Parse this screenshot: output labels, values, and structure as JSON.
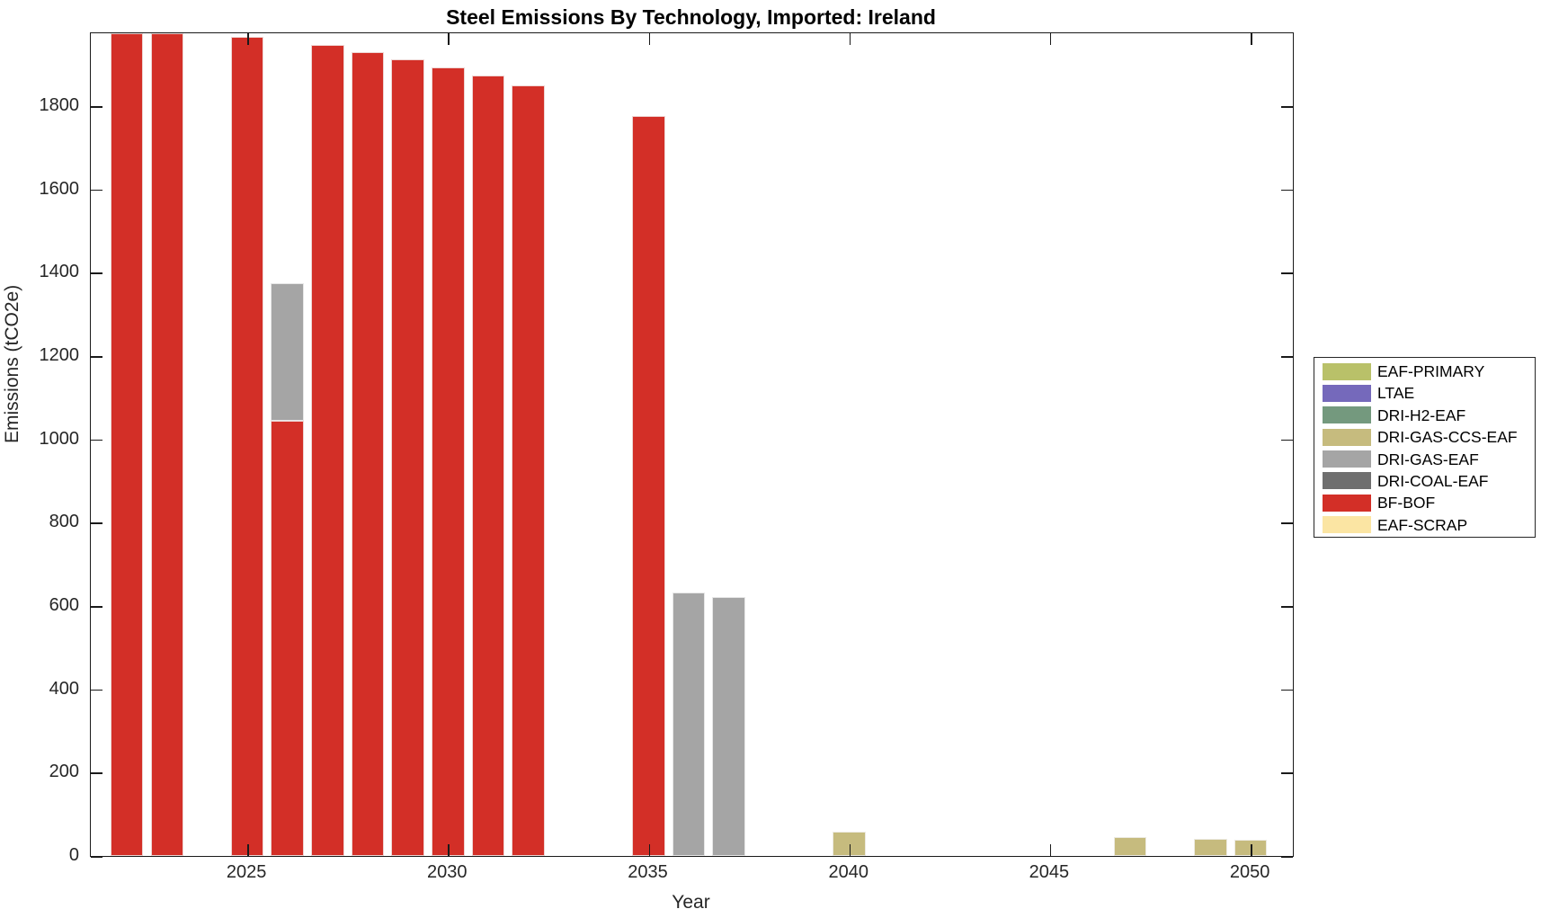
{
  "chart_data": {
    "type": "bar",
    "stacked": true,
    "title": "Steel Emissions By Technology, Imported: Ireland",
    "xlabel": "Year",
    "ylabel": "Emissions (tCO2e)",
    "xlim": [
      2021.1,
      2051.05
    ],
    "ylim": [
      0,
      1975
    ],
    "x_ticks": [
      2025,
      2030,
      2035,
      2040,
      2045,
      2050
    ],
    "y_ticks": [
      0,
      200,
      400,
      600,
      800,
      1000,
      1200,
      1400,
      1600,
      1800
    ],
    "grid": false,
    "bar_width_years": 0.82,
    "legend": {
      "position": "outside-right",
      "entries": [
        {
          "label": "EAF-PRIMARY",
          "color": "#b9c169"
        },
        {
          "label": "LTAE",
          "color": "#7569bb"
        },
        {
          "label": "DRI-H2-EAF",
          "color": "#74997e"
        },
        {
          "label": "DRI-GAS-CCS-EAF",
          "color": "#c6bb7e"
        },
        {
          "label": "DRI-GAS-EAF",
          "color": "#a5a5a5"
        },
        {
          "label": "DRI-COAL-EAF",
          "color": "#6f6f6f"
        },
        {
          "label": "BF-BOF",
          "color": "#d32f27"
        },
        {
          "label": "EAF-SCRAP",
          "color": "#fbe5a3"
        }
      ]
    },
    "bars": [
      {
        "year": 2022,
        "segments": [
          {
            "tech": "BF-BOF",
            "value": 1975
          }
        ]
      },
      {
        "year": 2023,
        "segments": [
          {
            "tech": "BF-BOF",
            "value": 1975
          }
        ]
      },
      {
        "year": 2025,
        "segments": [
          {
            "tech": "BF-BOF",
            "value": 1967
          }
        ]
      },
      {
        "year": 2026,
        "segments": [
          {
            "tech": "BF-BOF",
            "value": 1044
          },
          {
            "tech": "DRI-GAS-EAF",
            "value": 332
          }
        ]
      },
      {
        "year": 2027,
        "segments": [
          {
            "tech": "BF-BOF",
            "value": 1946
          }
        ]
      },
      {
        "year": 2028,
        "segments": [
          {
            "tech": "BF-BOF",
            "value": 1930
          }
        ]
      },
      {
        "year": 2029,
        "segments": [
          {
            "tech": "BF-BOF",
            "value": 1912
          }
        ]
      },
      {
        "year": 2030,
        "segments": [
          {
            "tech": "BF-BOF",
            "value": 1893
          }
        ]
      },
      {
        "year": 2031,
        "segments": [
          {
            "tech": "BF-BOF",
            "value": 1873
          }
        ]
      },
      {
        "year": 2032,
        "segments": [
          {
            "tech": "BF-BOF",
            "value": 1849
          }
        ]
      },
      {
        "year": 2035,
        "segments": [
          {
            "tech": "BF-BOF",
            "value": 1776
          }
        ]
      },
      {
        "year": 2036,
        "segments": [
          {
            "tech": "DRI-GAS-EAF",
            "value": 632
          }
        ]
      },
      {
        "year": 2037,
        "segments": [
          {
            "tech": "DRI-GAS-EAF",
            "value": 621
          }
        ]
      },
      {
        "year": 2040,
        "segments": [
          {
            "tech": "DRI-GAS-CCS-EAF",
            "value": 58
          }
        ]
      },
      {
        "year": 2047,
        "segments": [
          {
            "tech": "DRI-GAS-CCS-EAF",
            "value": 46
          }
        ]
      },
      {
        "year": 2049,
        "segments": [
          {
            "tech": "DRI-GAS-CCS-EAF",
            "value": 42
          }
        ]
      },
      {
        "year": 2050,
        "segments": [
          {
            "tech": "DRI-GAS-CCS-EAF",
            "value": 39
          }
        ]
      }
    ],
    "axis_color": "#1a1a1a",
    "tick_label_color": "#262626"
  }
}
